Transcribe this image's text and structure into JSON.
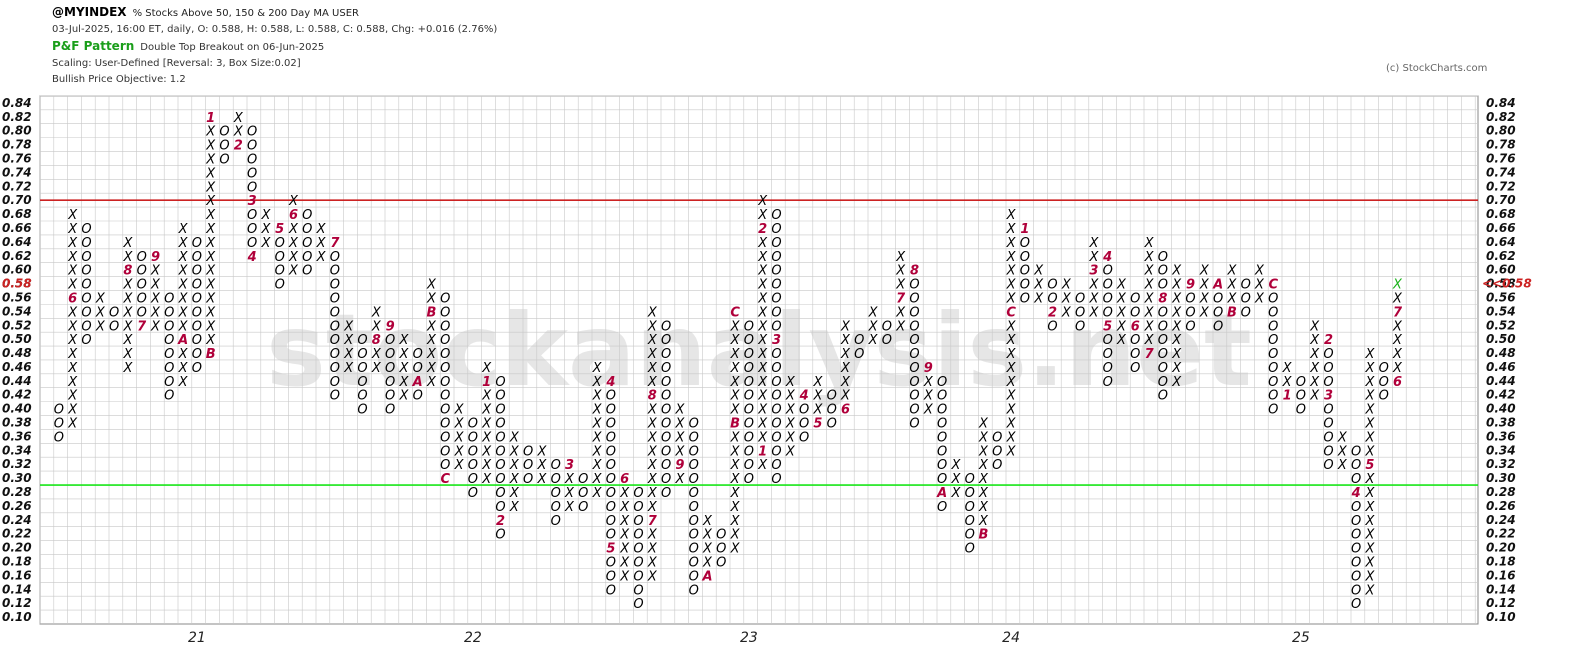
{
  "header": {
    "symbol": "@MYINDEX",
    "description": "% Stocks Above 50, 150 & 200 Day MA  USER",
    "quote": "03-Jul-2025, 16:00 ET, daily, O: 0.588, H: 0.588, L: 0.588, C: 0.588, Chg: +0.016 (2.76%)",
    "pattern_label": "P&F Pattern",
    "pattern_text": "Double Top Breakout on 06-Jun-2025",
    "scaling": "Scaling: User-Defined [Reversal: 3, Box Size:0.02]",
    "objective": "Bullish Price Objective: 1.2"
  },
  "credit": "(c) StockCharts.com",
  "watermark": "stockanalysis.net",
  "colors": {
    "x": "#000000",
    "o": "#000000",
    "month_marker": "#b0003a",
    "last_x": "#19b119",
    "resistance": "#cc2222",
    "support": "#19e619",
    "grid": "#c8c8c8",
    "price_marker": "#cc2222"
  },
  "chart_data": {
    "type": "point_and_figure",
    "box_size": 0.02,
    "reversal": 3,
    "y_ticks": [
      "0.10",
      "0.12",
      "0.14",
      "0.16",
      "0.18",
      "0.20",
      "0.22",
      "0.24",
      "0.26",
      "0.28",
      "0.30",
      "0.32",
      "0.34",
      "0.36",
      "0.38",
      "0.40",
      "0.42",
      "0.44",
      "0.46",
      "0.48",
      "0.50",
      "0.52",
      "0.54",
      "0.56",
      "0.58",
      "0.60",
      "0.62",
      "0.64",
      "0.66",
      "0.68",
      "0.70",
      "0.72",
      "0.74",
      "0.76",
      "0.78",
      "0.80",
      "0.82",
      "0.84"
    ],
    "ylim": [
      0.1,
      0.84
    ],
    "x_ticks": [
      {
        "label": "21",
        "col": 10
      },
      {
        "label": "22",
        "col": 30
      },
      {
        "label": "23",
        "col": 50
      },
      {
        "label": "24",
        "col": 69
      },
      {
        "label": "25",
        "col": 90
      }
    ],
    "resistance_level": 0.7,
    "support_level": 0.29,
    "last_price_label": "<<0.58",
    "columns": [
      {
        "type": "O",
        "high": 0.4,
        "low": 0.36
      },
      {
        "type": "X",
        "high": 0.68,
        "low": 0.38,
        "marks": [
          {
            "v": 0.56,
            "m": "6"
          }
        ]
      },
      {
        "type": "O",
        "high": 0.66,
        "low": 0.5
      },
      {
        "type": "X",
        "high": 0.56,
        "low": 0.52
      },
      {
        "type": "O",
        "high": 0.54,
        "low": 0.52
      },
      {
        "type": "X",
        "high": 0.64,
        "low": 0.46,
        "marks": [
          {
            "v": 0.6,
            "m": "8"
          }
        ]
      },
      {
        "type": "O",
        "high": 0.62,
        "low": 0.52,
        "marks": [
          {
            "v": 0.52,
            "m": "7"
          }
        ]
      },
      {
        "type": "X",
        "high": 0.62,
        "low": 0.52,
        "marks": [
          {
            "v": 0.62,
            "m": "9"
          }
        ]
      },
      {
        "type": "O",
        "high": 0.56,
        "low": 0.42
      },
      {
        "type": "X",
        "high": 0.66,
        "low": 0.44,
        "marks": [
          {
            "v": 0.5,
            "m": "A"
          }
        ]
      },
      {
        "type": "O",
        "high": 0.64,
        "low": 0.46
      },
      {
        "type": "X",
        "high": 0.82,
        "low": 0.48,
        "marks": [
          {
            "v": 0.82,
            "m": "1"
          },
          {
            "v": 0.48,
            "m": "B"
          }
        ]
      },
      {
        "type": "O",
        "high": 0.8,
        "low": 0.76
      },
      {
        "type": "X",
        "high": 0.82,
        "low": 0.78,
        "marks": [
          {
            "v": 0.78,
            "m": "2"
          }
        ]
      },
      {
        "type": "O",
        "high": 0.8,
        "low": 0.62,
        "marks": [
          {
            "v": 0.7,
            "m": "3"
          },
          {
            "v": 0.62,
            "m": "4"
          }
        ]
      },
      {
        "type": "X",
        "high": 0.68,
        "low": 0.64
      },
      {
        "type": "O",
        "high": 0.66,
        "low": 0.58,
        "marks": [
          {
            "v": 0.66,
            "m": "5"
          }
        ]
      },
      {
        "type": "X",
        "high": 0.7,
        "low": 0.6,
        "marks": [
          {
            "v": 0.68,
            "m": "6"
          }
        ]
      },
      {
        "type": "O",
        "high": 0.68,
        "low": 0.6
      },
      {
        "type": "X",
        "high": 0.66,
        "low": 0.62
      },
      {
        "type": "O",
        "high": 0.64,
        "low": 0.42,
        "marks": [
          {
            "v": 0.64,
            "m": "7"
          }
        ]
      },
      {
        "type": "X",
        "high": 0.52,
        "low": 0.46
      },
      {
        "type": "O",
        "high": 0.5,
        "low": 0.4
      },
      {
        "type": "X",
        "high": 0.54,
        "low": 0.46,
        "marks": [
          {
            "v": 0.5,
            "m": "8"
          }
        ]
      },
      {
        "type": "O",
        "high": 0.52,
        "low": 0.4,
        "marks": [
          {
            "v": 0.52,
            "m": "9"
          }
        ]
      },
      {
        "type": "X",
        "high": 0.5,
        "low": 0.42
      },
      {
        "type": "O",
        "high": 0.48,
        "low": 0.42,
        "marks": [
          {
            "v": 0.44,
            "m": "A"
          }
        ]
      },
      {
        "type": "X",
        "high": 0.58,
        "low": 0.44,
        "marks": [
          {
            "v": 0.54,
            "m": "B"
          }
        ]
      },
      {
        "type": "O",
        "high": 0.56,
        "low": 0.3,
        "marks": [
          {
            "v": 0.3,
            "m": "C"
          }
        ]
      },
      {
        "type": "X",
        "high": 0.4,
        "low": 0.32
      },
      {
        "type": "O",
        "high": 0.38,
        "low": 0.28
      },
      {
        "type": "X",
        "high": 0.46,
        "low": 0.3,
        "marks": [
          {
            "v": 0.44,
            "m": "1"
          }
        ]
      },
      {
        "type": "O",
        "high": 0.44,
        "low": 0.22,
        "marks": [
          {
            "v": 0.24,
            "m": "2"
          }
        ]
      },
      {
        "type": "X",
        "high": 0.36,
        "low": 0.26
      },
      {
        "type": "O",
        "high": 0.34,
        "low": 0.3
      },
      {
        "type": "X",
        "high": 0.34,
        "low": 0.3
      },
      {
        "type": "O",
        "high": 0.32,
        "low": 0.24
      },
      {
        "type": "X",
        "high": 0.32,
        "low": 0.26,
        "marks": [
          {
            "v": 0.32,
            "m": "3"
          }
        ]
      },
      {
        "type": "O",
        "high": 0.3,
        "low": 0.26
      },
      {
        "type": "X",
        "high": 0.46,
        "low": 0.28
      },
      {
        "type": "O",
        "high": 0.44,
        "low": 0.14,
        "marks": [
          {
            "v": 0.44,
            "m": "4"
          },
          {
            "v": 0.2,
            "m": "5"
          }
        ]
      },
      {
        "type": "X",
        "high": 0.3,
        "low": 0.16,
        "marks": [
          {
            "v": 0.3,
            "m": "6"
          }
        ]
      },
      {
        "type": "O",
        "high": 0.28,
        "low": 0.12
      },
      {
        "type": "X",
        "high": 0.54,
        "low": 0.16,
        "marks": [
          {
            "v": 0.42,
            "m": "8"
          },
          {
            "v": 0.24,
            "m": "7"
          }
        ]
      },
      {
        "type": "O",
        "high": 0.52,
        "low": 0.28
      },
      {
        "type": "X",
        "high": 0.4,
        "low": 0.3,
        "marks": [
          {
            "v": 0.32,
            "m": "9"
          }
        ]
      },
      {
        "type": "O",
        "high": 0.38,
        "low": 0.14
      },
      {
        "type": "X",
        "high": 0.24,
        "low": 0.16,
        "marks": [
          {
            "v": 0.16,
            "m": "A"
          }
        ]
      },
      {
        "type": "O",
        "high": 0.22,
        "low": 0.18
      },
      {
        "type": "X",
        "high": 0.54,
        "low": 0.2,
        "marks": [
          {
            "v": 0.54,
            "m": "C"
          },
          {
            "v": 0.38,
            "m": "B"
          }
        ]
      },
      {
        "type": "O",
        "high": 0.52,
        "low": 0.3
      },
      {
        "type": "X",
        "high": 0.7,
        "low": 0.32,
        "marks": [
          {
            "v": 0.66,
            "m": "2"
          },
          {
            "v": 0.34,
            "m": "1"
          }
        ]
      },
      {
        "type": "O",
        "high": 0.68,
        "low": 0.3,
        "marks": [
          {
            "v": 0.5,
            "m": "3"
          }
        ]
      },
      {
        "type": "X",
        "high": 0.44,
        "low": 0.34
      },
      {
        "type": "O",
        "high": 0.42,
        "low": 0.36,
        "marks": [
          {
            "v": 0.42,
            "m": "4"
          }
        ]
      },
      {
        "type": "X",
        "high": 0.44,
        "low": 0.38,
        "marks": [
          {
            "v": 0.38,
            "m": "5"
          }
        ]
      },
      {
        "type": "O",
        "high": 0.42,
        "low": 0.38
      },
      {
        "type": "X",
        "high": 0.52,
        "low": 0.4,
        "marks": [
          {
            "v": 0.4,
            "m": "6"
          }
        ]
      },
      {
        "type": "O",
        "high": 0.5,
        "low": 0.48
      },
      {
        "type": "X",
        "high": 0.54,
        "low": 0.5
      },
      {
        "type": "O",
        "high": 0.52,
        "low": 0.5
      },
      {
        "type": "X",
        "high": 0.62,
        "low": 0.52,
        "marks": [
          {
            "v": 0.56,
            "m": "7"
          }
        ]
      },
      {
        "type": "O",
        "high": 0.6,
        "low": 0.38,
        "marks": [
          {
            "v": 0.6,
            "m": "8"
          }
        ]
      },
      {
        "type": "X",
        "high": 0.46,
        "low": 0.4,
        "marks": [
          {
            "v": 0.46,
            "m": "9"
          }
        ]
      },
      {
        "type": "O",
        "high": 0.44,
        "low": 0.26,
        "marks": [
          {
            "v": 0.28,
            "m": "A"
          }
        ]
      },
      {
        "type": "X",
        "high": 0.32,
        "low": 0.28
      },
      {
        "type": "O",
        "high": 0.3,
        "low": 0.2
      },
      {
        "type": "X",
        "high": 0.38,
        "low": 0.22,
        "marks": [
          {
            "v": 0.22,
            "m": "B"
          }
        ]
      },
      {
        "type": "O",
        "high": 0.36,
        "low": 0.32
      },
      {
        "type": "X",
        "high": 0.68,
        "low": 0.34,
        "marks": [
          {
            "v": 0.54,
            "m": "C"
          }
        ]
      },
      {
        "type": "O",
        "high": 0.66,
        "low": 0.56,
        "marks": [
          {
            "v": 0.66,
            "m": "1"
          }
        ]
      },
      {
        "type": "X",
        "high": 0.6,
        "low": 0.56
      },
      {
        "type": "O",
        "high": 0.58,
        "low": 0.52,
        "marks": [
          {
            "v": 0.54,
            "m": "2"
          }
        ]
      },
      {
        "type": "X",
        "high": 0.58,
        "low": 0.54
      },
      {
        "type": "O",
        "high": 0.56,
        "low": 0.52
      },
      {
        "type": "X",
        "high": 0.64,
        "low": 0.54,
        "marks": [
          {
            "v": 0.6,
            "m": "3"
          }
        ]
      },
      {
        "type": "O",
        "high": 0.62,
        "low": 0.44,
        "marks": [
          {
            "v": 0.62,
            "m": "4"
          },
          {
            "v": 0.52,
            "m": "5"
          }
        ]
      },
      {
        "type": "X",
        "high": 0.58,
        "low": 0.5
      },
      {
        "type": "O",
        "high": 0.56,
        "low": 0.46,
        "marks": [
          {
            "v": 0.52,
            "m": "6"
          }
        ]
      },
      {
        "type": "X",
        "high": 0.64,
        "low": 0.48,
        "marks": [
          {
            "v": 0.48,
            "m": "7"
          }
        ]
      },
      {
        "type": "O",
        "high": 0.62,
        "low": 0.42,
        "marks": [
          {
            "v": 0.56,
            "m": "8"
          }
        ]
      },
      {
        "type": "X",
        "high": 0.6,
        "low": 0.44
      },
      {
        "type": "O",
        "high": 0.58,
        "low": 0.52,
        "marks": [
          {
            "v": 0.58,
            "m": "9"
          }
        ]
      },
      {
        "type": "X",
        "high": 0.6,
        "low": 0.54
      },
      {
        "type": "O",
        "high": 0.58,
        "low": 0.52,
        "marks": [
          {
            "v": 0.58,
            "m": "A"
          }
        ]
      },
      {
        "type": "X",
        "high": 0.6,
        "low": 0.54,
        "marks": [
          {
            "v": 0.54,
            "m": "B"
          }
        ]
      },
      {
        "type": "O",
        "high": 0.58,
        "low": 0.54
      },
      {
        "type": "X",
        "high": 0.6,
        "low": 0.56
      },
      {
        "type": "O",
        "high": 0.58,
        "low": 0.4,
        "marks": [
          {
            "v": 0.58,
            "m": "C"
          }
        ]
      },
      {
        "type": "X",
        "high": 0.46,
        "low": 0.42,
        "marks": [
          {
            "v": 0.42,
            "m": "1"
          }
        ]
      },
      {
        "type": "O",
        "high": 0.44,
        "low": 0.4
      },
      {
        "type": "X",
        "high": 0.52,
        "low": 0.42
      },
      {
        "type": "O",
        "high": 0.5,
        "low": 0.32,
        "marks": [
          {
            "v": 0.5,
            "m": "2"
          },
          {
            "v": 0.42,
            "m": "3"
          }
        ]
      },
      {
        "type": "X",
        "high": 0.36,
        "low": 0.32
      },
      {
        "type": "O",
        "high": 0.34,
        "low": 0.12,
        "marks": [
          {
            "v": 0.28,
            "m": "4"
          }
        ]
      },
      {
        "type": "X",
        "high": 0.48,
        "low": 0.14,
        "marks": [
          {
            "v": 0.32,
            "m": "5"
          }
        ]
      },
      {
        "type": "O",
        "high": 0.46,
        "low": 0.42
      },
      {
        "type": "X",
        "high": 0.58,
        "low": 0.44,
        "marks": [
          {
            "v": 0.54,
            "m": "7"
          },
          {
            "v": 0.44,
            "m": "6"
          }
        ],
        "last_green": true
      }
    ]
  }
}
